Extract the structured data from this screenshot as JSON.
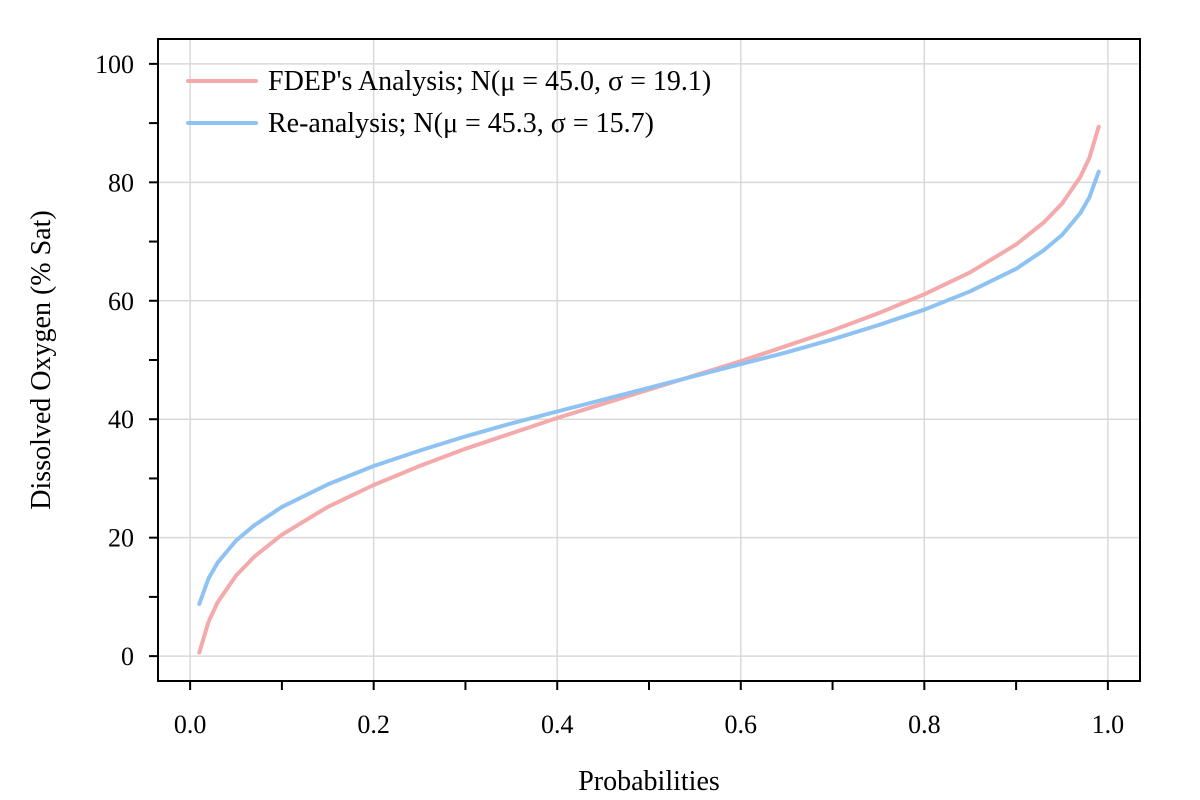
{
  "chart_data": {
    "type": "line",
    "title": "",
    "xlabel": "Probabilities",
    "ylabel": "Dissolved Oxygen (% Sat)",
    "xlim": [
      -0.035,
      1.035
    ],
    "ylim": [
      -4.2,
      104.2
    ],
    "x_ticks": [
      0.0,
      0.2,
      0.4,
      0.6,
      0.8,
      1.0
    ],
    "x_tick_labels": [
      "0.0",
      "0.2",
      "0.4",
      "0.6",
      "0.8",
      "1.0"
    ],
    "x_minor_ticks": [
      0.1,
      0.3,
      0.5,
      0.7,
      0.9
    ],
    "y_ticks": [
      0,
      20,
      40,
      60,
      80,
      100
    ],
    "y_tick_labels": [
      "0",
      "20",
      "40",
      "60",
      "80",
      "100"
    ],
    "y_minor_ticks": [
      10,
      30,
      50,
      70,
      90
    ],
    "grid": true,
    "legend_position": "top-left",
    "series": [
      {
        "name": "FDEP's Analysis; N(μ = 45.0, σ = 19.1)",
        "color": "#f4a9ab",
        "x": [
          0.01,
          0.02,
          0.03,
          0.05,
          0.07,
          0.1,
          0.15,
          0.2,
          0.25,
          0.3,
          0.35,
          0.4,
          0.45,
          0.5,
          0.55,
          0.6,
          0.65,
          0.7,
          0.75,
          0.8,
          0.85,
          0.9,
          0.93,
          0.95,
          0.97,
          0.98,
          0.99
        ],
        "y": [
          0.6,
          5.8,
          9.1,
          13.6,
          16.8,
          20.5,
          25.2,
          28.9,
          32.1,
          35.0,
          37.6,
          40.2,
          42.6,
          45.0,
          47.4,
          49.8,
          52.4,
          55.0,
          57.9,
          61.1,
          64.8,
          69.5,
          73.2,
          76.4,
          80.9,
          84.2,
          89.4
        ]
      },
      {
        "name": "Re-analysis; N(μ = 45.3, σ = 15.7)",
        "color": "#8ec2f2",
        "x": [
          0.01,
          0.02,
          0.03,
          0.05,
          0.07,
          0.1,
          0.15,
          0.2,
          0.25,
          0.3,
          0.35,
          0.4,
          0.45,
          0.5,
          0.55,
          0.6,
          0.65,
          0.7,
          0.75,
          0.8,
          0.85,
          0.9,
          0.93,
          0.95,
          0.97,
          0.98,
          0.99
        ],
        "y": [
          8.8,
          13.1,
          15.8,
          19.5,
          22.1,
          25.2,
          29.0,
          32.1,
          34.7,
          37.1,
          39.3,
          41.3,
          43.3,
          45.3,
          47.3,
          49.3,
          51.3,
          53.5,
          55.9,
          58.5,
          61.6,
          65.4,
          68.5,
          71.1,
          74.8,
          77.5,
          81.8
        ]
      }
    ]
  }
}
